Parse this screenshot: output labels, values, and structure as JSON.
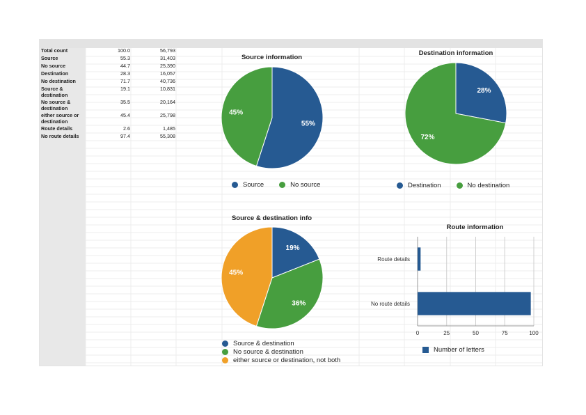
{
  "table": {
    "rows": [
      {
        "label": "Total count",
        "pct": "100.0",
        "count": "56,793",
        "lines": 1
      },
      {
        "label": "Source",
        "pct": "55.3",
        "count": "31,403",
        "lines": 1
      },
      {
        "label": "No source",
        "pct": "44.7",
        "count": "25,390",
        "lines": 1
      },
      {
        "label": "Destination",
        "pct": "28.3",
        "count": "16,057",
        "lines": 1
      },
      {
        "label": "No destination",
        "pct": "71.7",
        "count": "40,736",
        "lines": 1
      },
      {
        "label": "Source & destination",
        "pct": "19.1",
        "count": "10,831",
        "lines": 2
      },
      {
        "label": "No source & destination",
        "pct": "35.5",
        "count": "20,164",
        "lines": 2
      },
      {
        "label": "either source or destination",
        "pct": "45.4",
        "count": "25,798",
        "lines": 2
      },
      {
        "label": "Route details",
        "pct": "2.6",
        "count": "1,485",
        "lines": 1
      },
      {
        "label": "No route details",
        "pct": "97.4",
        "count": "55,308",
        "lines": 1
      }
    ]
  },
  "colors": {
    "blue": "#265a92",
    "green": "#479e3f",
    "orange": "#f0a028"
  },
  "chart_data": [
    {
      "id": "source",
      "type": "pie",
      "title": "Source information",
      "slices": [
        {
          "name": "Source",
          "value": 55,
          "label": "55%",
          "color": "#265a92"
        },
        {
          "name": "No source",
          "value": 45,
          "label": "45%",
          "color": "#479e3f"
        }
      ],
      "legend_position": "bottom"
    },
    {
      "id": "destination",
      "type": "pie",
      "title": "Destination information",
      "slices": [
        {
          "name": "Destination",
          "value": 28,
          "label": "28%",
          "color": "#265a92"
        },
        {
          "name": "No destination",
          "value": 72,
          "label": "72%",
          "color": "#479e3f"
        }
      ],
      "legend_position": "bottom"
    },
    {
      "id": "srcdest",
      "type": "pie",
      "title": "Source & destination info",
      "slices": [
        {
          "name": "Source & destination",
          "value": 19,
          "label": "19%",
          "color": "#265a92"
        },
        {
          "name": "No source & destination",
          "value": 36,
          "label": "36%",
          "color": "#479e3f"
        },
        {
          "name": "either source or destination, not both",
          "value": 45,
          "label": "45%",
          "color": "#f0a028"
        }
      ],
      "legend_position": "bottom"
    },
    {
      "id": "route",
      "type": "bar",
      "orientation": "horizontal",
      "title": "Route information",
      "categories": [
        "Route details",
        "No route details"
      ],
      "series": [
        {
          "name": "Number of letters",
          "values": [
            2.6,
            97.4
          ],
          "color": "#265a92"
        }
      ],
      "xlim": [
        0,
        100
      ],
      "xticks": [
        "0",
        "25",
        "50",
        "75",
        "100"
      ],
      "grid": true,
      "legend_position": "bottom"
    }
  ]
}
